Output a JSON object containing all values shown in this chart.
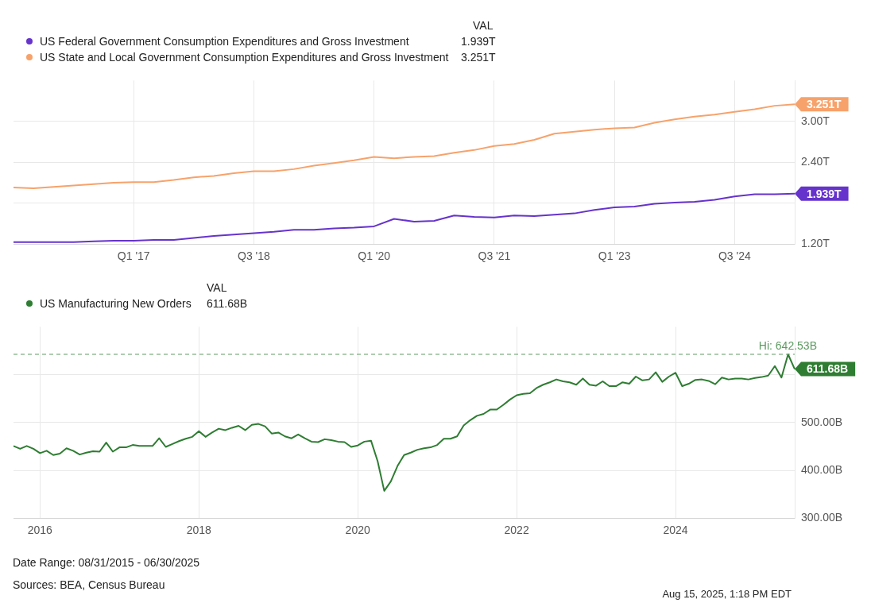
{
  "chart_data": [
    {
      "type": "line",
      "legend": "top left",
      "legend_title": "VAL",
      "grid": true,
      "categories": [
        null,
        null,
        null,
        null,
        null,
        null,
        "Q1 '17",
        null,
        null,
        null,
        null,
        null,
        "Q3 '18",
        null,
        null,
        null,
        null,
        null,
        "Q1 '20",
        null,
        null,
        null,
        null,
        null,
        "Q3 '21",
        null,
        null,
        null,
        null,
        null,
        "Q1 '23",
        null,
        null,
        null,
        null,
        null,
        "Q3 '24",
        null,
        null,
        null
      ],
      "series": [
        {
          "name": "US Federal Government Consumption Expenditures and Gross Investment",
          "color": "#6633cc",
          "values": [
            1.23,
            1.23,
            1.23,
            1.23,
            1.24,
            1.25,
            1.25,
            1.26,
            1.26,
            1.29,
            1.32,
            1.34,
            1.36,
            1.38,
            1.41,
            1.41,
            1.43,
            1.44,
            1.46,
            1.57,
            1.53,
            1.54,
            1.62,
            1.6,
            1.59,
            1.62,
            1.61,
            1.63,
            1.65,
            1.7,
            1.74,
            1.75,
            1.79,
            1.81,
            1.82,
            1.85,
            1.9,
            1.93,
            1.93,
            1.939
          ],
          "value_labels": [
            null,
            null,
            null,
            null,
            null,
            null,
            null,
            null,
            null,
            null,
            null,
            null,
            null,
            null,
            null,
            null,
            null,
            null,
            null,
            null,
            null,
            null,
            null,
            null,
            null,
            null,
            null,
            null,
            null,
            null,
            null,
            null,
            null,
            null,
            null,
            null,
            null,
            null,
            null,
            "1.939T"
          ]
        },
        {
          "name": "US State and Local Government Consumption Expenditures and Gross Investment",
          "color": "#f7a26b",
          "values": [
            2.03,
            2.02,
            2.04,
            2.06,
            2.08,
            2.1,
            2.11,
            2.11,
            2.14,
            2.18,
            2.2,
            2.24,
            2.27,
            2.27,
            2.3,
            2.35,
            2.39,
            2.43,
            2.48,
            2.46,
            2.48,
            2.49,
            2.54,
            2.58,
            2.64,
            2.67,
            2.73,
            2.82,
            2.85,
            2.88,
            2.9,
            2.91,
            2.98,
            3.03,
            3.07,
            3.1,
            3.14,
            3.18,
            3.23,
            3.251
          ],
          "value_labels": [
            null,
            null,
            null,
            null,
            null,
            null,
            null,
            null,
            null,
            null,
            null,
            null,
            null,
            null,
            null,
            null,
            null,
            null,
            null,
            null,
            null,
            null,
            null,
            null,
            null,
            null,
            null,
            null,
            null,
            null,
            null,
            null,
            null,
            null,
            null,
            null,
            null,
            null,
            null,
            "3.251T"
          ]
        }
      ],
      "ylim": [
        1.2,
        3.6
      ],
      "yticks": [
        {
          "value": 1.2,
          "label": "1.20T"
        },
        {
          "value": 1.8,
          "label": null
        },
        {
          "value": 2.4,
          "label": "2.40T"
        },
        {
          "value": 3.0,
          "label": "3.00T"
        }
      ]
    },
    {
      "type": "line",
      "legend": "top left",
      "legend_title": "VAL",
      "grid": true,
      "categories": [
        null,
        null,
        null,
        null,
        "2016",
        null,
        null,
        null,
        null,
        null,
        null,
        null,
        null,
        null,
        null,
        null,
        null,
        null,
        null,
        null,
        null,
        null,
        null,
        null,
        null,
        null,
        null,
        null,
        "2018",
        null,
        null,
        null,
        null,
        null,
        null,
        null,
        null,
        null,
        null,
        null,
        null,
        null,
        null,
        null,
        null,
        null,
        null,
        null,
        null,
        null,
        null,
        null,
        "2020",
        null,
        null,
        null,
        null,
        null,
        null,
        null,
        null,
        null,
        null,
        null,
        null,
        null,
        null,
        null,
        null,
        null,
        null,
        null,
        null,
        null,
        null,
        null,
        "2022",
        null,
        null,
        null,
        null,
        null,
        null,
        null,
        null,
        null,
        null,
        null,
        null,
        null,
        null,
        null,
        null,
        null,
        null,
        null,
        null,
        null,
        null,
        null,
        "2024",
        null,
        null,
        null,
        null,
        null,
        null,
        null,
        null,
        null,
        null,
        null,
        null,
        null,
        null,
        null,
        null,
        null,
        null
      ],
      "series": [
        {
          "name": "US Manufacturing New Orders",
          "color": "#2e7d32",
          "values": [
            451,
            445,
            451,
            445,
            436,
            441,
            432,
            435,
            446,
            441,
            433,
            437,
            440,
            439,
            458,
            439,
            448,
            448,
            453,
            451,
            451,
            451,
            467,
            449,
            455,
            461,
            466,
            470,
            482,
            470,
            479,
            487,
            484,
            489,
            493,
            484,
            495,
            497,
            492,
            477,
            479,
            471,
            467,
            475,
            467,
            460,
            459,
            465,
            463,
            460,
            459,
            449,
            452,
            460,
            462,
            419,
            357,
            377,
            409,
            432,
            437,
            443,
            446,
            448,
            453,
            466,
            466,
            471,
            494,
            505,
            514,
            518,
            527,
            527,
            537,
            548,
            557,
            560,
            561,
            572,
            579,
            584,
            590,
            586,
            584,
            579,
            592,
            579,
            577,
            586,
            576,
            576,
            584,
            581,
            596,
            588,
            590,
            605,
            585,
            596,
            604,
            576,
            581,
            589,
            590,
            587,
            580,
            594,
            590,
            592,
            592,
            590,
            593,
            595,
            598,
            618,
            594,
            642.53,
            611.68
          ],
          "value_labels": [
            null,
            null,
            null,
            null,
            null,
            null,
            null,
            null,
            null,
            null,
            null,
            null,
            null,
            null,
            null,
            null,
            null,
            null,
            null,
            null,
            null,
            null,
            null,
            null,
            null,
            null,
            null,
            null,
            null,
            null,
            null,
            null,
            null,
            null,
            null,
            null,
            null,
            null,
            null,
            null,
            null,
            null,
            null,
            null,
            null,
            null,
            null,
            null,
            null,
            null,
            null,
            null,
            null,
            null,
            null,
            null,
            null,
            null,
            null,
            null,
            null,
            null,
            null,
            null,
            null,
            null,
            null,
            null,
            null,
            null,
            null,
            null,
            null,
            null,
            null,
            null,
            null,
            null,
            null,
            null,
            null,
            null,
            null,
            null,
            null,
            null,
            null,
            null,
            null,
            null,
            null,
            null,
            null,
            null,
            null,
            null,
            null,
            null,
            null,
            null,
            null,
            null,
            null,
            null,
            null,
            null,
            null,
            null,
            null,
            null,
            null,
            null,
            null,
            null,
            null,
            null,
            null,
            null,
            "611.68B"
          ]
        }
      ],
      "ylim": [
        300,
        700
      ],
      "yticks": [
        {
          "value": 300,
          "label": "300.00B"
        },
        {
          "value": 400,
          "label": "400.00B"
        },
        {
          "value": 500,
          "label": "500.00B"
        },
        {
          "value": 600,
          "label": null
        }
      ],
      "ref_lines": [
        {
          "axis": "y",
          "value": 642.53,
          "label": "Hi: 642.53B",
          "color": "#5c9a60",
          "line_style": "dashed"
        }
      ],
      "annotations": [
        "Date Range: 08/31/2015 - 06/30/2025",
        "Sources: BEA, Census Bureau",
        "Aug 15, 2025, 1:18 PM EDT"
      ]
    }
  ]
}
